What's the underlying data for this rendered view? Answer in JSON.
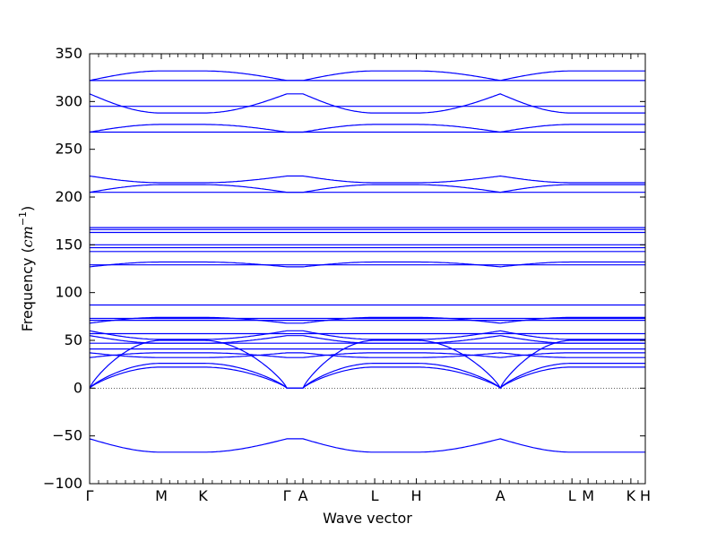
{
  "chart_data": {
    "type": "line",
    "title": "",
    "xlabel": "Wave vector",
    "ylabel": "Frequency ($cm^{-1}$)",
    "ylabel_parts": {
      "prefix": "Frequency (",
      "base": "cm",
      "sup": "−1",
      "suffix": ")"
    },
    "ylim": [
      -100,
      350
    ],
    "yticks": [
      -100,
      -50,
      0,
      50,
      100,
      150,
      200,
      250,
      300,
      350
    ],
    "ytick_labels": [
      "−100",
      "−50",
      "0",
      "50",
      "100",
      "150",
      "200",
      "250",
      "300",
      "350"
    ],
    "x_special_points": [
      {
        "label": "Γ",
        "x": 0.0
      },
      {
        "label": "M",
        "x": 0.129
      },
      {
        "label": "K",
        "x": 0.204
      },
      {
        "label": "Γ",
        "x": 0.355
      },
      {
        "label": "A",
        "x": 0.384
      },
      {
        "label": "L",
        "x": 0.513
      },
      {
        "label": "H",
        "x": 0.588
      },
      {
        "label": "A",
        "x": 0.739
      },
      {
        "label": "L",
        "x": 0.868
      },
      {
        "label": "M",
        "x": 0.897
      },
      {
        "label": "K",
        "x": 0.974
      },
      {
        "label": "H",
        "x": 1.0
      }
    ],
    "zero_line": {
      "y": 0,
      "style": "dotted"
    },
    "line_color": "#0000ff",
    "grid": false,
    "bands": {
      "flat": [
        322,
        295,
        268,
        205,
        168,
        166,
        163,
        150,
        147,
        143,
        129,
        87,
        73,
        71,
        57,
        47,
        41
      ],
      "wavy": [
        {
          "a": 322,
          "b": 332
        },
        {
          "a": 308,
          "b": 288
        },
        {
          "a": 268,
          "b": 276
        },
        {
          "a": 222,
          "b": 215
        },
        {
          "a": 205,
          "b": 213
        },
        {
          "a": 127,
          "b": 132
        },
        {
          "a": 68,
          "b": 74
        },
        {
          "a": 60,
          "b": 51
        },
        {
          "a": 55,
          "b": 47
        },
        {
          "a": 37,
          "b": 32
        },
        {
          "a": 32,
          "b": 37
        },
        {
          "a": -53,
          "b": -67
        }
      ],
      "acoustic": [
        {
          "a": 0,
          "b": 50
        },
        {
          "a": 0,
          "b": 26
        },
        {
          "a": 0,
          "b": 22
        }
      ]
    }
  }
}
